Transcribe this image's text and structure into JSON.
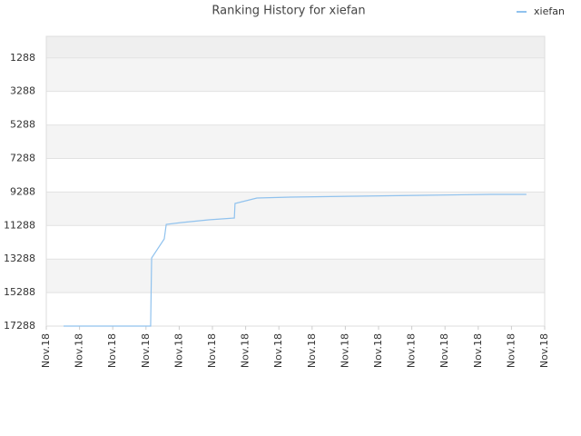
{
  "chart_data": {
    "type": "line",
    "title": "Ranking History for xiefan",
    "series": [
      {
        "name": "xiefan",
        "color": "#90c2ee",
        "x": [
          0.52,
          3.14,
          3.17,
          3.55,
          3.61,
          4.07,
          4.89,
          5.66,
          5.68,
          6.34,
          7.35,
          9.34,
          11.37,
          13.39,
          14.45
        ],
        "values": [
          17288,
          17288,
          13224,
          12085,
          11218,
          11110,
          10947,
          10839,
          9972,
          9647,
          9592,
          9538,
          9484,
          9430,
          9430
        ]
      }
    ],
    "ylim": [
      17288,
      0
    ],
    "yticks": [
      1288,
      3288,
      5288,
      7288,
      9288,
      11288,
      13288,
      15288,
      17288
    ],
    "xlim": [
      0,
      15
    ],
    "xticks": [
      {
        "value": 0,
        "label": "Nov.18"
      },
      {
        "value": 1,
        "label": "Nov.18"
      },
      {
        "value": 2,
        "label": "Nov.18"
      },
      {
        "value": 3,
        "label": "Nov.18"
      },
      {
        "value": 4,
        "label": "Nov.18"
      },
      {
        "value": 5,
        "label": "Nov.18"
      },
      {
        "value": 6,
        "label": "Nov.18"
      },
      {
        "value": 7,
        "label": "Nov.18"
      },
      {
        "value": 8,
        "label": "Nov.18"
      },
      {
        "value": 9,
        "label": "Nov.18"
      },
      {
        "value": 10,
        "label": "Nov.18"
      },
      {
        "value": 11,
        "label": "Nov.18"
      },
      {
        "value": 12,
        "label": "Nov.18"
      },
      {
        "value": 13,
        "label": "Nov.18"
      },
      {
        "value": 14,
        "label": "Nov.18"
      },
      {
        "value": 15,
        "label": "Nov.18"
      }
    ],
    "grid": true,
    "legend": "top-right"
  }
}
